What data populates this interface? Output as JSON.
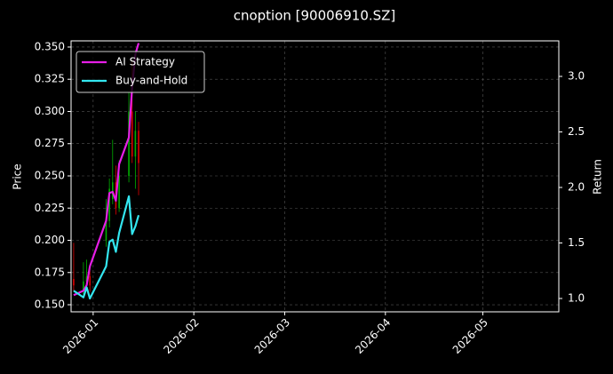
{
  "chart_data": {
    "type": "candlestick",
    "title": "cnoption [90006910.SZ]",
    "ylabel": "Price",
    "y2label": "Return",
    "x": [
      -6,
      -3,
      -2,
      -1,
      4,
      5,
      6,
      7,
      8,
      11,
      12,
      13,
      14
    ],
    "open": [
      0.17,
      0.16,
      0.168,
      0.172,
      0.2,
      0.215,
      0.232,
      0.245,
      0.225,
      0.25,
      0.3,
      0.265,
      0.285
    ],
    "high": [
      0.198,
      0.183,
      0.185,
      0.178,
      0.232,
      0.248,
      0.278,
      0.258,
      0.262,
      0.315,
      0.34,
      0.3,
      0.292
    ],
    "low": [
      0.16,
      0.158,
      0.165,
      0.16,
      0.195,
      0.21,
      0.228,
      0.22,
      0.222,
      0.245,
      0.26,
      0.24,
      0.235
    ],
    "close": [
      0.165,
      0.168,
      0.172,
      0.165,
      0.215,
      0.24,
      0.245,
      0.225,
      0.25,
      0.3,
      0.265,
      0.285,
      0.26
    ],
    "up_color": "#00b000",
    "down_color": "#e00000",
    "series": [
      {
        "name": "AI Strategy",
        "color": "#e61ee6",
        "axis": "y2",
        "values": [
          1.03,
          1.07,
          1.12,
          1.29,
          1.7,
          1.95,
          1.96,
          1.88,
          2.21,
          2.45,
          2.9,
          3.2,
          3.3
        ]
      },
      {
        "name": "Buy-and-Hold",
        "color": "#33e6f0",
        "axis": "y2",
        "values": [
          1.07,
          1.01,
          1.1,
          1.0,
          1.29,
          1.51,
          1.53,
          1.42,
          1.59,
          1.92,
          1.58,
          1.65,
          1.75
        ]
      }
    ],
    "xlim": [
      -6.8,
      143.4
    ],
    "xticks": [
      {
        "value": 0,
        "label": "2026-01"
      },
      {
        "value": 31,
        "label": "2026-02"
      },
      {
        "value": 59,
        "label": "2026-03"
      },
      {
        "value": 90,
        "label": "2026-04"
      },
      {
        "value": 120,
        "label": "2026-05"
      }
    ],
    "ylim": [
      0.1445,
      0.3548
    ],
    "yticks": [
      {
        "value": 0.15,
        "label": "0.150"
      },
      {
        "value": 0.175,
        "label": "0.175"
      },
      {
        "value": 0.2,
        "label": "0.200"
      },
      {
        "value": 0.225,
        "label": "0.225"
      },
      {
        "value": 0.25,
        "label": "0.250"
      },
      {
        "value": 0.275,
        "label": "0.275"
      },
      {
        "value": 0.3,
        "label": "0.300"
      },
      {
        "value": 0.325,
        "label": "0.325"
      },
      {
        "value": 0.35,
        "label": "0.350"
      }
    ],
    "y2lim": [
      0.88,
      3.32
    ],
    "y2ticks": [
      {
        "value": 1,
        "label": "1.0"
      },
      {
        "value": 1.5,
        "label": "1.5"
      },
      {
        "value": 2,
        "label": "2.0"
      },
      {
        "value": 2.5,
        "label": "2.5"
      },
      {
        "value": 3,
        "label": "3.0"
      }
    ],
    "grid": true,
    "legend": "upper-left"
  }
}
